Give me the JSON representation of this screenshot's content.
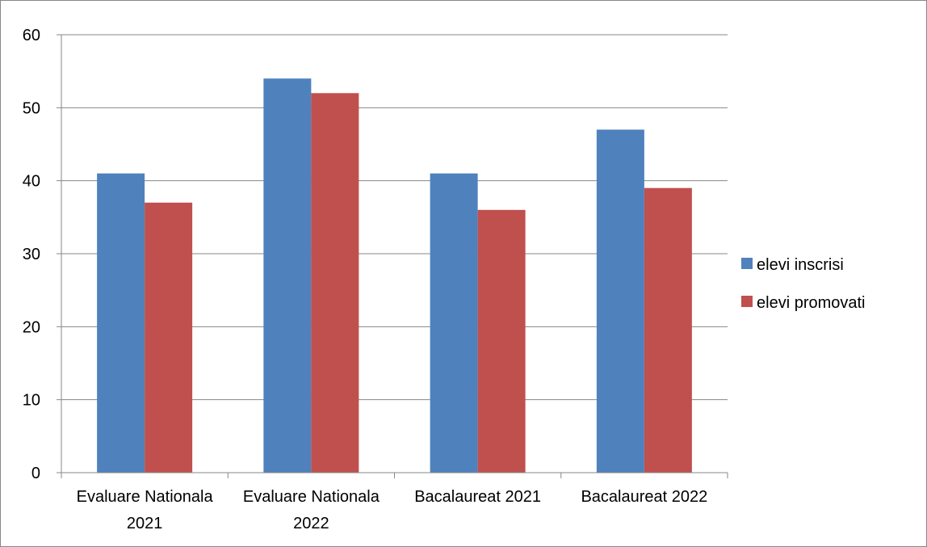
{
  "chart_data": {
    "type": "bar",
    "categories": [
      [
        "Evaluare Nationala",
        "2021"
      ],
      [
        "Evaluare Nationala",
        "2022"
      ],
      [
        "Bacalaureat 2021"
      ],
      [
        "Bacalaureat 2022"
      ]
    ],
    "series": [
      {
        "name": "elevi inscrisi",
        "values": [
          41,
          54,
          41,
          47
        ],
        "color": "#4F81BD"
      },
      {
        "name": "elevi promovati",
        "values": [
          37,
          52,
          36,
          39
        ],
        "color": "#C0504D"
      }
    ],
    "ylim": [
      0,
      60
    ],
    "yticks": [
      "0",
      "10",
      "20",
      "30",
      "40",
      "50",
      "60"
    ],
    "ytick_values": [
      0,
      10,
      20,
      30,
      40,
      50,
      60
    ],
    "grid": true,
    "legend_position": "right",
    "gridline_color": "#878787"
  }
}
